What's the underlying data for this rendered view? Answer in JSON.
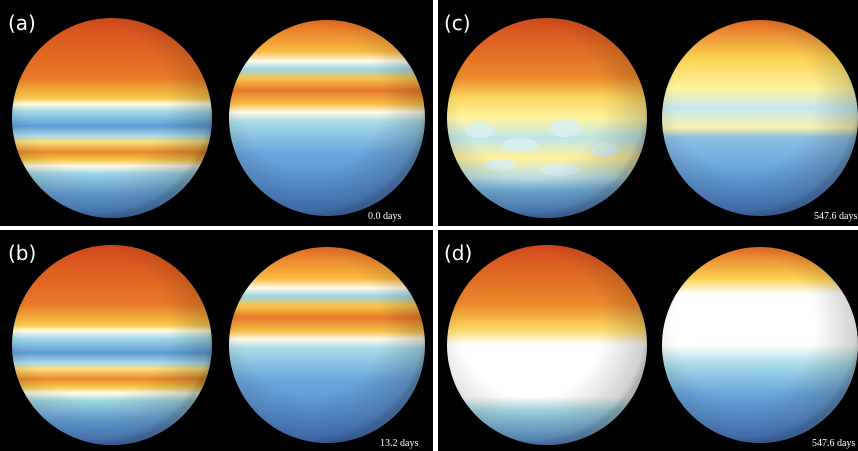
{
  "panels": [
    {
      "label": "(a)",
      "time": "0.0 days"
    },
    {
      "label": "(b)",
      "time": "13.2 days"
    },
    {
      "label": "(c)",
      "time": "547.6 days"
    },
    {
      "label": "(d)",
      "time": "547.6 days"
    }
  ]
}
